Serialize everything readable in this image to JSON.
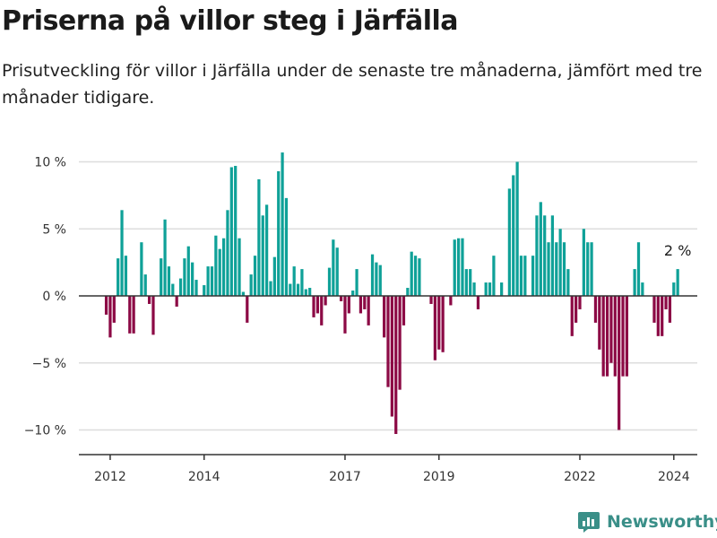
{
  "header": {
    "title": "Priserna på villor steg i Järfälla",
    "subtitle": "Prisutveckling för villor i Järfälla under de senaste tre månaderna, jämfört med tre månader tidigare."
  },
  "brand": {
    "name": "Newsworthy"
  },
  "colors": {
    "positive": "#0fa198",
    "negative": "#8c0a45",
    "grid": "#dddddd",
    "zero_line": "#333333",
    "axis": "#333333",
    "brand": "#3a8f88"
  },
  "chart_data": {
    "type": "bar",
    "title": "Priserna på villor steg i Järfälla",
    "subtitle": "Prisutveckling för villor i Järfälla under de senaste tre månaderna, jämfört med tre månader tidigare.",
    "xlabel": "",
    "ylabel": "",
    "x_start": "2011-12",
    "x_interval": "month",
    "x_range": [
      "2011-05",
      "2024-07"
    ],
    "x_ticks": [
      {
        "label": "2012",
        "month": "2012-01"
      },
      {
        "label": "2014",
        "month": "2014-01"
      },
      {
        "label": "2017",
        "month": "2017-01"
      },
      {
        "label": "2019",
        "month": "2019-01"
      },
      {
        "label": "2022",
        "month": "2022-01"
      },
      {
        "label": "2024",
        "month": "2024-01"
      }
    ],
    "ylim": [
      -12,
      12
    ],
    "y_ticks": [
      {
        "value": 10,
        "label": "10 %"
      },
      {
        "value": 5,
        "label": "5 %"
      },
      {
        "value": 0,
        "label": "0 %"
      },
      {
        "value": -5,
        "label": "−5 %"
      },
      {
        "value": -10,
        "label": "−10 %"
      }
    ],
    "grid": true,
    "values": [
      -1.4,
      -3.1,
      -2.0,
      2.8,
      6.4,
      3.0,
      -2.8,
      -2.8,
      0,
      4.0,
      1.6,
      -0.6,
      -2.9,
      0,
      2.8,
      5.7,
      2.2,
      0.9,
      -0.8,
      1.3,
      2.8,
      3.7,
      2.5,
      1.2,
      0,
      0.8,
      2.2,
      2.2,
      4.5,
      3.5,
      4.3,
      6.4,
      9.6,
      9.7,
      4.3,
      0.3,
      -2.0,
      1.6,
      3.0,
      8.7,
      6.0,
      6.8,
      1.1,
      2.9,
      9.3,
      10.7,
      7.3,
      0.9,
      2.2,
      0.9,
      2.0,
      0.5,
      0.6,
      -1.6,
      -1.3,
      -2.2,
      -0.7,
      2.1,
      4.2,
      3.6,
      -0.4,
      -2.8,
      -1.3,
      0.4,
      2.0,
      -1.3,
      -1.0,
      -2.2,
      3.1,
      2.5,
      2.3,
      -3.1,
      -6.8,
      -9.0,
      -10.3,
      -7.0,
      -2.2,
      0.6,
      3.3,
      3.0,
      2.8,
      0,
      0,
      -0.6,
      -4.8,
      -4.0,
      -4.2,
      0,
      -0.7,
      4.2,
      4.3,
      4.3,
      2.0,
      2.0,
      1.0,
      -1.0,
      0,
      1.0,
      1.0,
      3.0,
      0,
      1.0,
      0,
      8.0,
      9.0,
      10.0,
      3.0,
      3.0,
      0,
      3.0,
      6.0,
      7.0,
      6.0,
      4.0,
      6.0,
      4.0,
      5.0,
      4.0,
      2.0,
      -3.0,
      -2.0,
      -1.0,
      5.0,
      4.0,
      4.0,
      -2.0,
      -4.0,
      -6.0,
      -6.0,
      -5.0,
      -6.0,
      -10.0,
      -6.0,
      -6.0,
      0,
      2.0,
      4.0,
      1.0,
      0,
      0,
      -2.0,
      -3.0,
      -3.0,
      -1.0,
      -2.0,
      1.0,
      2.0
    ],
    "annotations": [
      {
        "text": "2 %",
        "month": "2024-02"
      }
    ]
  }
}
